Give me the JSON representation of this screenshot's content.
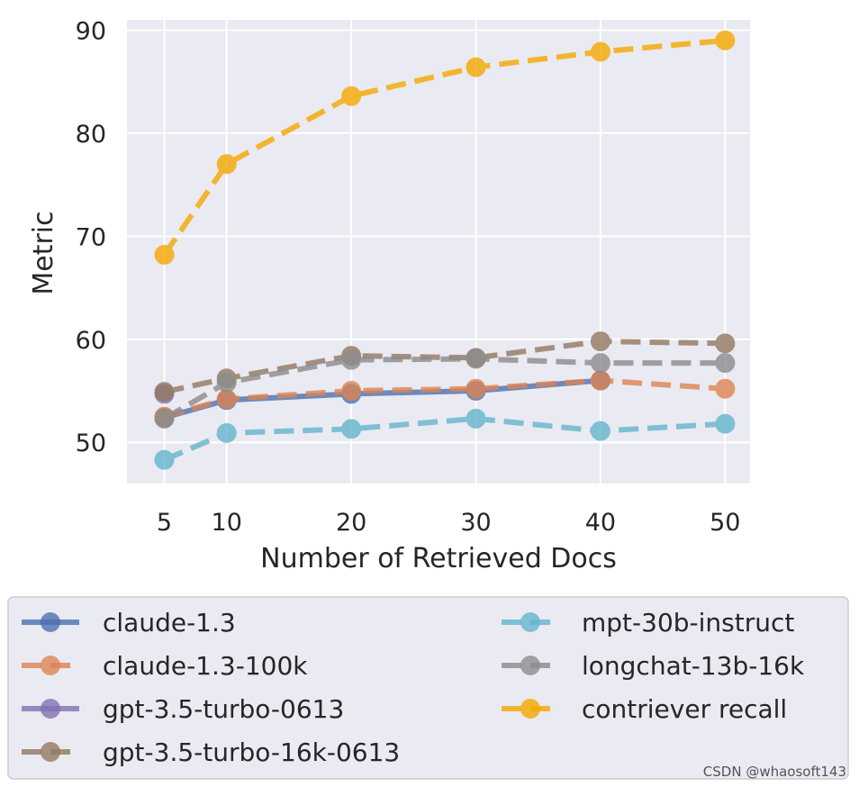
{
  "chart_data": {
    "type": "line",
    "xlabel": "Number of Retrieved Docs",
    "ylabel": "Metric",
    "x": [
      5,
      10,
      20,
      30,
      40,
      50
    ],
    "xlim": [
      2,
      52
    ],
    "ylim": [
      46,
      91
    ],
    "xticks": [
      5,
      10,
      20,
      30,
      40,
      50
    ],
    "yticks": [
      50,
      60,
      70,
      80,
      90
    ],
    "grid": true,
    "legend_position": "bottom",
    "series": [
      {
        "name": "claude-1.3",
        "color": "#4c72b0",
        "dashed": false,
        "values": [
          52.4,
          54.1,
          54.7,
          55.0,
          56.0,
          null
        ]
      },
      {
        "name": "claude-1.3-100k",
        "color": "#dd8452",
        "dashed": true,
        "values": [
          52.5,
          54.2,
          55.0,
          55.2,
          56.0,
          55.2
        ]
      },
      {
        "name": "gpt-3.5-turbo-0613",
        "color": "#8172b3",
        "dashed": false,
        "values": [
          54.7,
          null,
          null,
          null,
          null,
          null
        ]
      },
      {
        "name": "gpt-3.5-turbo-16k-0613",
        "color": "#937860",
        "dashed": true,
        "values": [
          54.9,
          56.2,
          58.4,
          58.2,
          59.8,
          59.6
        ]
      },
      {
        "name": "mpt-30b-instruct",
        "color": "#64b5cd",
        "dashed": true,
        "values": [
          48.3,
          50.9,
          51.3,
          52.3,
          51.1,
          51.8
        ]
      },
      {
        "name": "longchat-13b-16k",
        "color": "#8c8c8c",
        "dashed": true,
        "values": [
          52.3,
          55.8,
          58.0,
          58.1,
          57.7,
          57.7
        ]
      },
      {
        "name": "contriever recall",
        "color": "#f5a800",
        "dashed": true,
        "values": [
          68.2,
          77.0,
          83.6,
          86.4,
          87.9,
          89.0
        ]
      }
    ]
  },
  "watermark": "CSDN @whaosoft143"
}
